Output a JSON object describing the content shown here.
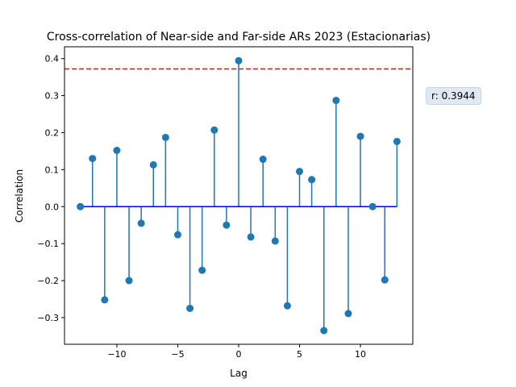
{
  "chart_data": {
    "type": "stem",
    "title": "Cross-correlation of Near-side and Far-side ARs 2023 (Estacionarias)",
    "xlabel": "Lag",
    "ylabel": "Correlation",
    "xlim": [
      -14.3,
      14.3
    ],
    "ylim": [
      -0.372,
      0.432
    ],
    "xticks": [
      -10,
      -5,
      0,
      5,
      10
    ],
    "xtick_labels": [
      "−10",
      "−5",
      "0",
      "5",
      "10"
    ],
    "yticks": [
      -0.3,
      -0.2,
      -0.1,
      0.0,
      0.1,
      0.2,
      0.3,
      0.4
    ],
    "ytick_labels": [
      "−0.3",
      "−0.2",
      "−0.1",
      "0.0",
      "0.1",
      "0.2",
      "0.3",
      "0.4"
    ],
    "x": [
      -13,
      -12,
      -11,
      -10,
      -9,
      -8,
      -7,
      -6,
      -5,
      -4,
      -3,
      -2,
      -1,
      0,
      1,
      2,
      3,
      4,
      5,
      6,
      7,
      8,
      9,
      10,
      11,
      12,
      13
    ],
    "values": [
      0.0,
      0.13,
      -0.252,
      0.152,
      -0.2,
      -0.045,
      0.113,
      0.187,
      -0.076,
      -0.275,
      -0.172,
      0.207,
      -0.05,
      0.3944,
      -0.082,
      0.128,
      -0.093,
      -0.268,
      0.095,
      0.073,
      -0.335,
      0.287,
      -0.289,
      0.19,
      0.0,
      -0.198,
      0.176
    ],
    "threshold": 0.372,
    "annotation": "r: 0.3944",
    "colors": {
      "stem": "#1f77b4",
      "baseline": "#0000ff",
      "threshold": "#ff0000",
      "annotation_bg": "#dfe8f3"
    },
    "grid": false
  }
}
